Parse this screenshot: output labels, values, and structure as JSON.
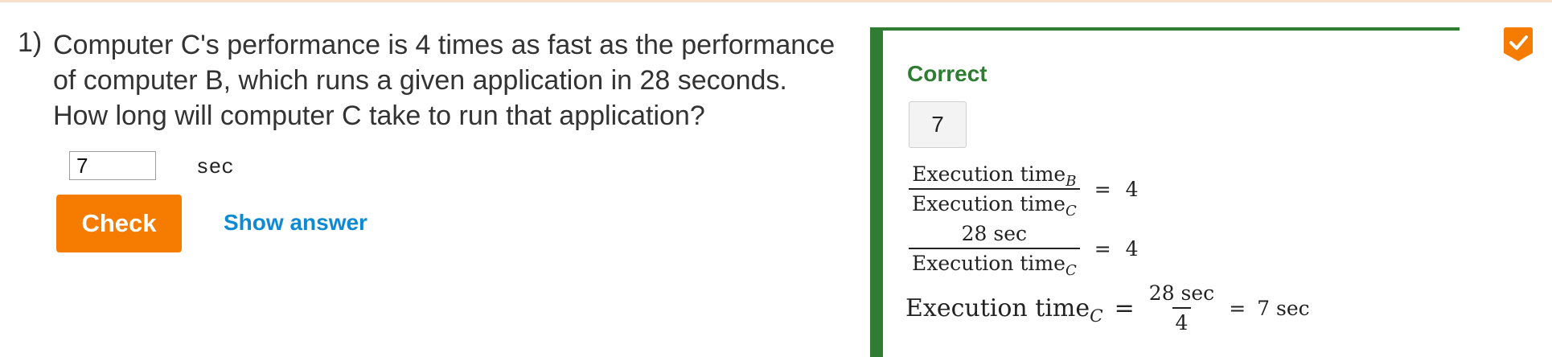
{
  "question": {
    "number": "1)",
    "text": "Computer C's performance is 4 times as fast as the performance of computer B, which runs a given application in 28 seconds. How long will computer C take to run that application?",
    "input_value": "7",
    "unit": "sec",
    "check_label": "Check",
    "show_answer_label": "Show answer"
  },
  "explanation": {
    "status": "Correct",
    "answer": "7",
    "eq1": {
      "num_text": "Execution time",
      "num_sub": "B",
      "den_text": "Execution time",
      "den_sub": "C",
      "equals": "=",
      "rhs": "4"
    },
    "eq2": {
      "num_text": "28 sec",
      "den_text": "Execution time",
      "den_sub": "C",
      "equals": "=",
      "rhs": "4"
    },
    "eq3": {
      "lhs_text": "Execution time",
      "lhs_sub": "C",
      "equals": "=",
      "frac_num": "28 sec",
      "frac_den": "4",
      "equals2": "=",
      "rhs": "7 sec"
    }
  },
  "colors": {
    "accent_orange": "#f57c00",
    "correct_green": "#2e7d32",
    "link_blue": "#0d8ad6"
  },
  "icons": {
    "badge": "checkmark-badge-icon"
  }
}
